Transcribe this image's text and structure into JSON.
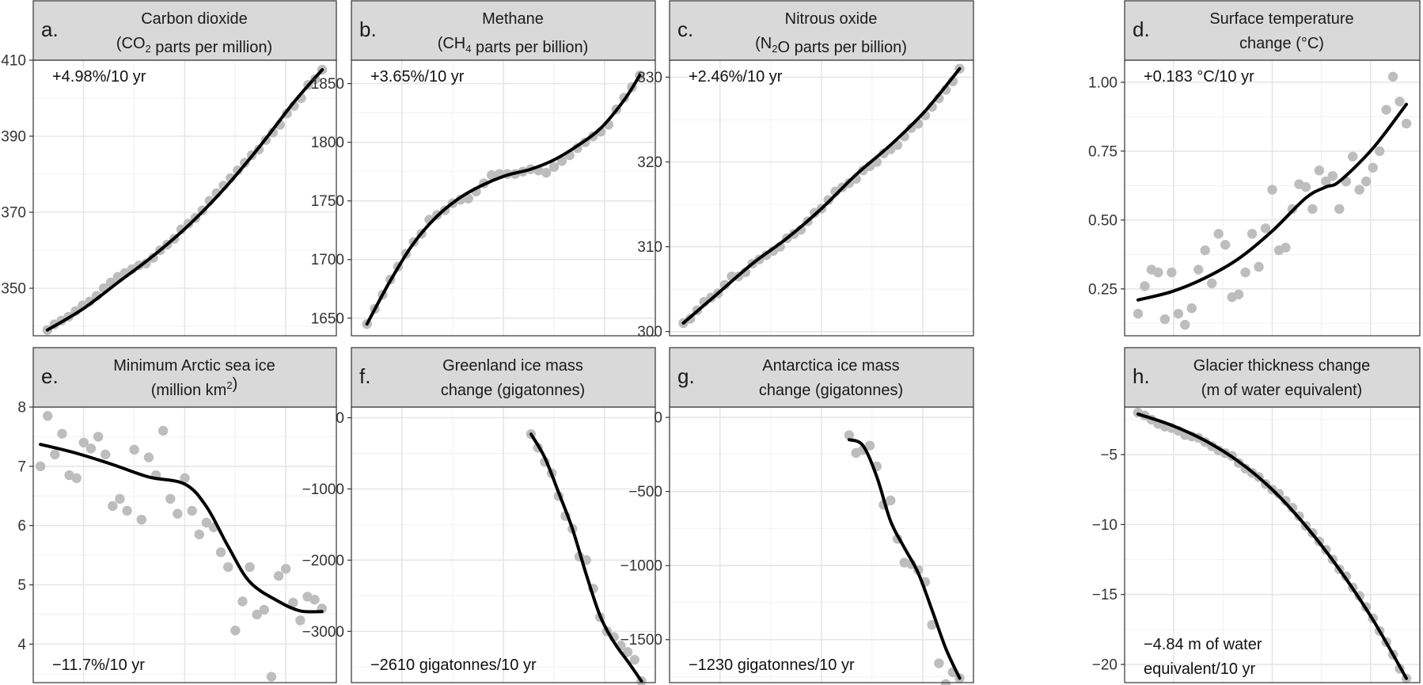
{
  "chart_data": [
    {
      "type": "scatter",
      "letter": "a.",
      "title_lines": [
        "Carbon dioxide",
        "(CO2 parts per million)"
      ],
      "title_rich": [
        {
          "t": "(CO"
        },
        {
          "t": "2",
          "sub": true
        },
        {
          "t": " parts per million)"
        }
      ],
      "annotation": "+4.98%/10 yr",
      "annotation_pos": "top-left",
      "xlim": [
        1977,
        2020
      ],
      "ylim": [
        337.5,
        410
      ],
      "yticks": [
        350,
        370,
        390,
        410
      ],
      "points": {
        "x": [
          1979,
          1980,
          1981,
          1982,
          1983,
          1984,
          1985,
          1986,
          1987,
          1988,
          1989,
          1990,
          1991,
          1992,
          1993,
          1994,
          1995,
          1996,
          1997,
          1998,
          1999,
          2000,
          2001,
          2002,
          2003,
          2004,
          2005,
          2006,
          2007,
          2008,
          2009,
          2010,
          2011,
          2012,
          2013,
          2014,
          2015,
          2016,
          2017,
          2018
        ],
        "y": [
          339,
          340.5,
          341.5,
          342.5,
          344,
          345.5,
          346.5,
          348,
          350,
          351.5,
          353,
          354,
          355,
          356,
          356.5,
          358,
          360,
          361.5,
          363,
          365.5,
          367,
          368.5,
          370.5,
          373,
          375,
          377,
          379,
          381,
          383,
          385,
          386.5,
          389,
          391,
          393,
          396,
          398,
          400,
          403.5,
          405,
          407.5
        ]
      },
      "curve": {
        "x": [
          1979,
          1984,
          1989,
          1994,
          1999,
          2004,
          2009,
          2014,
          2018
        ],
        "y": [
          339,
          344.5,
          351.5,
          358.5,
          366.5,
          376,
          387,
          399,
          407.5
        ]
      }
    },
    {
      "type": "scatter",
      "letter": "b.",
      "title_lines": [
        "Methane",
        "(CH4 parts per billion)"
      ],
      "title_rich": [
        {
          "t": "(CH"
        },
        {
          "t": "4",
          "sub": true
        },
        {
          "t": " parts per billion)"
        }
      ],
      "annotation": "+3.65%/10 yr",
      "annotation_pos": "top-left",
      "xlim": [
        1981,
        2020
      ],
      "ylim": [
        1635,
        1870
      ],
      "yticks": [
        1650,
        1700,
        1750,
        1800,
        1850
      ],
      "points": {
        "x": [
          1983,
          1984,
          1985,
          1986,
          1987,
          1988,
          1989,
          1990,
          1991,
          1992,
          1993,
          1994,
          1995,
          1996,
          1997,
          1998,
          1999,
          2000,
          2001,
          2002,
          2003,
          2004,
          2005,
          2006,
          2007,
          2008,
          2009,
          2010,
          2011,
          2012,
          2013,
          2014,
          2015,
          2016,
          2017,
          2018
        ],
        "y": [
          1645,
          1658,
          1670,
          1683,
          1694,
          1705,
          1715,
          1722,
          1734,
          1738,
          1742,
          1748,
          1751,
          1752,
          1758,
          1765,
          1772,
          1773,
          1773,
          1773,
          1775,
          1777,
          1776,
          1774,
          1779,
          1784,
          1789,
          1795,
          1800,
          1805,
          1809,
          1815,
          1828,
          1838,
          1847,
          1857
        ]
      },
      "curve": {
        "x": [
          1983,
          1986,
          1989,
          1992,
          1995,
          1998,
          2001,
          2004,
          2007,
          2010,
          2013,
          2016,
          2018
        ],
        "y": [
          1645,
          1682,
          1714,
          1737,
          1753,
          1764,
          1772,
          1777,
          1785,
          1797,
          1812,
          1836,
          1857
        ]
      }
    },
    {
      "type": "scatter",
      "letter": "c.",
      "title_lines": [
        "Nitrous oxide",
        "(N2O parts per billion)"
      ],
      "title_rich": [
        {
          "t": "(N"
        },
        {
          "t": "2",
          "sub": true
        },
        {
          "t": "O parts per billion)"
        }
      ],
      "annotation": "+2.46%/10 yr",
      "annotation_pos": "top-left",
      "xlim": [
        1976,
        2020
      ],
      "ylim": [
        299.5,
        332
      ],
      "yticks": [
        300,
        310,
        320,
        330
      ],
      "points": {
        "x": [
          1978,
          1979,
          1980,
          1981,
          1982,
          1983,
          1984,
          1985,
          1986,
          1987,
          1988,
          1989,
          1990,
          1991,
          1992,
          1993,
          1994,
          1995,
          1996,
          1997,
          1998,
          1999,
          2000,
          2001,
          2002,
          2003,
          2004,
          2005,
          2006,
          2007,
          2008,
          2009,
          2010,
          2011,
          2012,
          2013,
          2014,
          2015,
          2016,
          2017,
          2018
        ],
        "y": [
          301,
          301.5,
          302.5,
          303.5,
          304,
          304.5,
          305.5,
          306.5,
          306.5,
          307,
          308,
          308.5,
          309,
          309.5,
          310,
          311,
          311.5,
          312,
          313,
          314,
          314.5,
          315.5,
          316.5,
          317,
          317.5,
          318,
          319,
          319.5,
          320,
          321,
          321.5,
          322,
          323,
          324,
          324.5,
          325.5,
          326.5,
          327.5,
          328.5,
          329.5,
          331
        ]
      },
      "curve": {
        "x": [
          1978,
          1983,
          1988,
          1993,
          1998,
          2003,
          2008,
          2013,
          2018
        ],
        "y": [
          301,
          304.5,
          308,
          311,
          314.5,
          318.5,
          322,
          326,
          331
        ]
      }
    },
    {
      "type": "scatter",
      "letter": "d.",
      "title_lines": [
        "Surface temperature",
        "change (°C)"
      ],
      "annotation": "+0.183 °C/10 yr",
      "annotation_pos": "top-left",
      "xlim": [
        1976,
        2020
      ],
      "ylim": [
        0.08,
        1.08
      ],
      "yticks": [
        0.25,
        0.5,
        0.75,
        1.0
      ],
      "ytick_labels": [
        "0.25",
        "0.50",
        "0.75",
        "1.00"
      ],
      "points": {
        "x": [
          1978,
          1979,
          1980,
          1981,
          1982,
          1983,
          1984,
          1985,
          1986,
          1987,
          1988,
          1989,
          1990,
          1991,
          1992,
          1993,
          1994,
          1995,
          1996,
          1997,
          1998,
          1999,
          2000,
          2001,
          2002,
          2003,
          2004,
          2005,
          2006,
          2007,
          2008,
          2009,
          2010,
          2011,
          2012,
          2013,
          2014,
          2015,
          2016,
          2017,
          2018
        ],
        "y": [
          0.16,
          0.26,
          0.32,
          0.31,
          0.14,
          0.31,
          0.16,
          0.12,
          0.18,
          0.32,
          0.39,
          0.27,
          0.45,
          0.41,
          0.22,
          0.23,
          0.31,
          0.45,
          0.33,
          0.47,
          0.61,
          0.39,
          0.4,
          0.54,
          0.63,
          0.62,
          0.54,
          0.68,
          0.64,
          0.66,
          0.54,
          0.64,
          0.73,
          0.61,
          0.64,
          0.69,
          0.75,
          0.9,
          1.02,
          0.93,
          0.85
        ]
      },
      "curve": {
        "x": [
          1978,
          1983,
          1988,
          1993,
          1998,
          2003,
          2006,
          2008,
          2013,
          2018
        ],
        "y": [
          0.21,
          0.24,
          0.29,
          0.36,
          0.46,
          0.58,
          0.62,
          0.64,
          0.76,
          0.92
        ]
      }
    },
    {
      "type": "scatter",
      "letter": "e.",
      "title_lines": [
        "Minimum Arctic sea ice",
        "(million km²)"
      ],
      "title_rich": [
        {
          "t": "(million km"
        },
        {
          "t": "2",
          "sup": true
        },
        {
          "t": ")"
        }
      ],
      "annotation": "−11.7%/10 yr",
      "annotation_pos": "bottom-left",
      "xlim": [
        1978,
        2020
      ],
      "ylim": [
        3.35,
        8.0
      ],
      "yticks": [
        4,
        5,
        6,
        7,
        8
      ],
      "points": {
        "x": [
          1979,
          1980,
          1981,
          1982,
          1983,
          1984,
          1985,
          1986,
          1987,
          1988,
          1989,
          1990,
          1991,
          1992,
          1993,
          1994,
          1995,
          1996,
          1997,
          1998,
          1999,
          2000,
          2001,
          2002,
          2003,
          2004,
          2005,
          2006,
          2007,
          2008,
          2009,
          2010,
          2011,
          2012,
          2013,
          2014,
          2015,
          2016,
          2017,
          2018
        ],
        "y": [
          7.0,
          7.85,
          7.2,
          7.55,
          6.85,
          6.8,
          7.4,
          7.3,
          7.5,
          7.2,
          6.33,
          6.45,
          6.25,
          7.28,
          6.1,
          7.15,
          6.85,
          7.6,
          6.45,
          6.2,
          6.8,
          6.25,
          5.85,
          6.05,
          5.97,
          5.55,
          5.3,
          4.23,
          4.72,
          5.3,
          4.5,
          4.58,
          3.45,
          5.15,
          5.27,
          4.7,
          4.4,
          4.8,
          4.75,
          4.6
        ]
      },
      "curve": {
        "x": [
          1979,
          1984,
          1989,
          1994,
          1999,
          2002,
          2005,
          2008,
          2012,
          2015,
          2018
        ],
        "y": [
          7.37,
          7.22,
          7.03,
          6.82,
          6.7,
          6.32,
          5.65,
          5.05,
          4.72,
          4.56,
          4.55
        ]
      }
    },
    {
      "type": "scatter",
      "letter": "f.",
      "title_lines": [
        "Greenland ice mass",
        "change (gigatonnes)"
      ],
      "annotation": "−2610 gigatonnes/10 yr",
      "annotation_pos": "bottom-left",
      "xlim": [
        1976,
        2020
      ],
      "ylim": [
        -3720,
        150
      ],
      "yticks": [
        -3000,
        -2000,
        -1000,
        0
      ],
      "ytick_labels": [
        "−3000",
        "−2000",
        "−1000",
        "0"
      ],
      "points": {
        "x": [
          2002,
          2003,
          2004,
          2005,
          2006,
          2007,
          2008,
          2009,
          2010,
          2011,
          2012,
          2013,
          2014,
          2015,
          2016,
          2017,
          2018
        ],
        "y": [
          -230,
          -420,
          -620,
          -780,
          -1100,
          -1380,
          -1560,
          -1950,
          -2000,
          -2400,
          -2800,
          -3000,
          -3080,
          -3200,
          -3290,
          -3400,
          -3700
        ]
      },
      "curve": {
        "x": [
          2002,
          2004,
          2006,
          2008,
          2010,
          2012,
          2014,
          2016,
          2018
        ],
        "y": [
          -230,
          -560,
          -1050,
          -1560,
          -2200,
          -2780,
          -3150,
          -3420,
          -3700
        ]
      }
    },
    {
      "type": "scatter",
      "letter": "g.",
      "title_lines": [
        "Antarctica ice mass",
        "change (gigatonnes)"
      ],
      "annotation": "−1230 gigatonnes/10 yr",
      "annotation_pos": "bottom-left",
      "xlim": [
        1976,
        2020
      ],
      "ylim": [
        -1790,
        70
      ],
      "yticks": [
        -1500,
        -1000,
        -500,
        0
      ],
      "ytick_labels": [
        "−1500",
        "−1000",
        "−500",
        "0"
      ],
      "points": {
        "x": [
          2002,
          2003,
          2004,
          2005,
          2006,
          2007,
          2008,
          2009,
          2010,
          2011,
          2012,
          2013,
          2014,
          2015,
          2016,
          2017,
          2018
        ],
        "y": [
          -120,
          -240,
          -220,
          -190,
          -330,
          -590,
          -560,
          -820,
          -980,
          -990,
          -1030,
          -1110,
          -1400,
          -1660,
          -1800,
          -1720,
          -1760
        ]
      },
      "curve": {
        "x": [
          2002,
          2004,
          2006,
          2008,
          2010,
          2012,
          2014,
          2016,
          2018
        ],
        "y": [
          -150,
          -190,
          -400,
          -700,
          -880,
          -1050,
          -1300,
          -1560,
          -1760
        ]
      }
    },
    {
      "type": "scatter",
      "letter": "h.",
      "title_lines": [
        "Glacier thickness change",
        "(m of water equivalent)"
      ],
      "annotation_lines": [
        "−4.84 m of water",
        "equivalent/10 yr"
      ],
      "annotation_pos": "bottom-left",
      "xlim": [
        1976,
        2020
      ],
      "ylim": [
        -21.3,
        -1.6
      ],
      "yticks": [
        -20,
        -15,
        -10,
        -5
      ],
      "ytick_labels": [
        "−20",
        "−15",
        "−10",
        "−5"
      ],
      "points": {
        "x": [
          1978,
          1979,
          1980,
          1981,
          1982,
          1983,
          1984,
          1985,
          1986,
          1987,
          1988,
          1989,
          1990,
          1991,
          1992,
          1993,
          1994,
          1995,
          1996,
          1997,
          1998,
          1999,
          2000,
          2001,
          2002,
          2003,
          2004,
          2005,
          2006,
          2007,
          2008,
          2009,
          2010,
          2011,
          2012,
          2013,
          2014,
          2015,
          2016,
          2017,
          2018
        ],
        "y": [
          -2.0,
          -2.2,
          -2.5,
          -2.8,
          -3.0,
          -3.1,
          -3.3,
          -3.6,
          -3.7,
          -3.8,
          -4.1,
          -4.4,
          -4.7,
          -4.9,
          -5.1,
          -5.6,
          -6.0,
          -6.3,
          -6.6,
          -7.1,
          -7.5,
          -7.8,
          -8.3,
          -8.8,
          -9.4,
          -10.1,
          -10.6,
          -11.2,
          -11.8,
          -12.5,
          -13.2,
          -13.7,
          -14.5,
          -15.1,
          -15.9,
          -16.7,
          -17.6,
          -18.4,
          -19.3,
          -20.3,
          -21.0
        ]
      },
      "curve": {
        "x": [
          1978,
          1983,
          1988,
          1993,
          1998,
          2003,
          2008,
          2013,
          2018
        ],
        "y": [
          -2.1,
          -2.9,
          -4.0,
          -5.5,
          -7.5,
          -10.1,
          -13.2,
          -16.8,
          -21.0
        ]
      }
    }
  ]
}
